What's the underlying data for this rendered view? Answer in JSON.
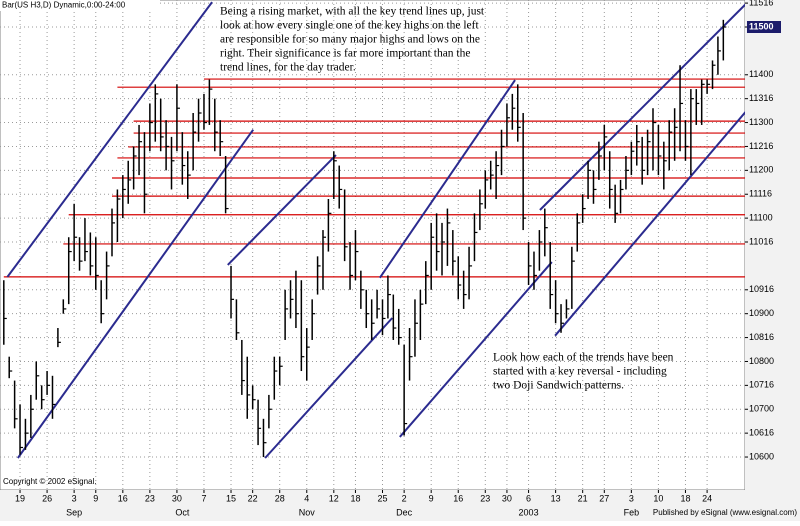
{
  "chart_data": {
    "type": "ohlc",
    "title": "Bar(US H3,D) Dynamic,0:00-24:00",
    "categories": [
      null,
      null,
      null,
      "19",
      null,
      null,
      null,
      null,
      "26",
      null,
      null,
      null,
      null,
      "3",
      null,
      null,
      null,
      "9",
      null,
      null,
      null,
      null,
      "16",
      null,
      null,
      null,
      null,
      "23",
      null,
      null,
      null,
      null,
      "30",
      null,
      null,
      null,
      null,
      "7",
      null,
      null,
      null,
      null,
      "15",
      null,
      null,
      null,
      "22",
      null,
      null,
      null,
      null,
      "28",
      null,
      null,
      null,
      null,
      "4",
      null,
      null,
      null,
      null,
      "12",
      null,
      null,
      null,
      "18",
      null,
      null,
      null,
      null,
      "25",
      null,
      null,
      null,
      "2",
      null,
      null,
      null,
      null,
      "9",
      null,
      null,
      null,
      null,
      "16",
      null,
      null,
      null,
      null,
      "23",
      null,
      null,
      null,
      "30",
      null,
      null,
      null,
      "6",
      null,
      null,
      null,
      null,
      "13",
      null,
      null,
      null,
      null,
      "21",
      null,
      null,
      null,
      "27",
      null,
      null,
      null,
      null,
      "3",
      null,
      null,
      null,
      null,
      "10",
      null,
      null,
      null,
      null,
      "18",
      null,
      null,
      null,
      "24",
      null,
      null,
      null
    ],
    "periods": [
      null,
      null,
      null,
      null,
      null,
      null,
      null,
      null,
      null,
      null,
      null,
      null,
      null,
      "Sep",
      null,
      null,
      null,
      null,
      null,
      null,
      null,
      null,
      null,
      null,
      null,
      null,
      null,
      null,
      null,
      null,
      null,
      null,
      null,
      "Oct",
      null,
      null,
      null,
      null,
      null,
      null,
      null,
      null,
      null,
      null,
      null,
      null,
      null,
      null,
      null,
      null,
      null,
      null,
      null,
      null,
      null,
      null,
      "Nov",
      null,
      null,
      null,
      null,
      null,
      null,
      null,
      null,
      null,
      null,
      null,
      null,
      null,
      null,
      null,
      null,
      null,
      "Dec",
      null,
      null,
      null,
      null,
      null,
      null,
      null,
      null,
      null,
      null,
      null,
      null,
      null,
      null,
      null,
      null,
      null,
      null,
      null,
      null,
      null,
      null,
      "2003",
      null,
      null,
      null,
      null,
      null,
      null,
      null,
      null,
      null,
      null,
      null,
      null,
      null,
      null,
      null,
      null,
      null,
      null,
      "Feb",
      null,
      null,
      null,
      null,
      null,
      null,
      null,
      null,
      null,
      null,
      null,
      null,
      null,
      null,
      null,
      null,
      null
    ],
    "high": [
      109.7,
      108.1,
      107.6,
      107.1,
      106.8,
      107.3,
      108.0,
      107.5,
      107.8,
      107.7,
      108.7,
      109.3,
      110.6,
      111.3,
      110.6,
      111.0,
      110.7,
      110.6,
      109.7,
      110.3,
      111.2,
      111.6,
      111.9,
      112.2,
      112.5,
      112.95,
      112.8,
      113.4,
      113.8,
      113.5,
      113.05,
      112.7,
      113.8,
      112.8,
      112.4,
      113.2,
      113.5,
      113.6,
      113.9,
      113.5,
      113.05,
      112.3,
      110.0,
      109.3,
      108.45,
      108.1,
      107.5,
      107.2,
      106.8,
      107.3,
      108.1,
      108.1,
      109.5,
      109.7,
      109.9,
      109.7,
      108.7,
      109.3,
      110.2,
      110.75,
      111.4,
      112.4,
      112.1,
      111.6,
      110.5,
      110.75,
      109.9,
      109.5,
      109.3,
      109.5,
      109.3,
      109.8,
      109.4,
      109.1,
      108.35,
      108.7,
      109.3,
      109.5,
      110.1,
      110.9,
      111.1,
      110.9,
      111.2,
      110.75,
      110.2,
      109.9,
      110.4,
      111.1,
      111.6,
      112.0,
      112.2,
      112.4,
      112.85,
      113.4,
      113.6,
      113.8,
      113.2,
      110.5,
      110.3,
      110.75,
      111.2,
      110.5,
      109.7,
      109.2,
      109.3,
      110.4,
      111.1,
      111.5,
      112.2,
      112.0,
      112.6,
      112.95,
      112.4,
      111.7,
      111.8,
      112.3,
      112.6,
      112.95,
      112.7,
      112.85,
      113.3,
      112.95,
      112.6,
      113.05,
      113.3,
      114.2,
      113.05,
      113.7,
      113.7,
      113.9,
      113.9,
      114.3,
      114.8,
      115.15
    ],
    "low": [
      108.35,
      107.65,
      106.6,
      106.05,
      106.15,
      106.4,
      107.2,
      107.0,
      107.3,
      106.8,
      108.3,
      109.0,
      109.2,
      110.1,
      109.9,
      110.1,
      109.8,
      109.5,
      108.8,
      109.3,
      110.2,
      110.5,
      111.0,
      111.3,
      111.6,
      111.9,
      111.1,
      112.4,
      112.6,
      112.4,
      112.0,
      111.6,
      112.4,
      111.7,
      111.4,
      112.0,
      112.6,
      112.85,
      112.95,
      112.4,
      112.3,
      111.1,
      108.9,
      108.45,
      107.3,
      106.8,
      107.0,
      106.25,
      106.0,
      106.6,
      107.2,
      107.5,
      108.45,
      108.9,
      108.7,
      107.8,
      107.6,
      108.45,
      109.4,
      109.5,
      110.3,
      111.4,
      111.2,
      110.1,
      109.5,
      109.7,
      109.1,
      108.7,
      108.45,
      108.9,
      108.55,
      108.9,
      108.45,
      108.35,
      106.45,
      107.6,
      108.1,
      108.45,
      109.2,
      109.5,
      109.9,
      109.8,
      110.0,
      109.8,
      109.3,
      109.1,
      109.3,
      110.1,
      110.75,
      111.2,
      111.6,
      111.4,
      111.9,
      112.5,
      112.85,
      112.6,
      110.75,
      109.6,
      109.5,
      109.9,
      110.2,
      109.1,
      108.8,
      108.6,
      108.9,
      109.1,
      110.3,
      110.9,
      111.4,
      111.3,
      111.8,
      112.0,
      111.2,
      110.9,
      111.1,
      111.6,
      111.9,
      112.1,
      111.7,
      111.9,
      112.0,
      111.9,
      111.6,
      112.0,
      112.2,
      112.4,
      112.2,
      111.9,
      112.95,
      112.95,
      113.6,
      113.7,
      114.0,
      114.3
    ],
    "close": [
      108.9,
      107.8,
      106.8,
      106.2,
      106.5,
      107.0,
      107.7,
      107.2,
      107.5,
      107.1,
      108.4,
      109.1,
      110.3,
      110.6,
      110.1,
      110.3,
      110.0,
      109.8,
      109.0,
      110.0,
      110.9,
      111.4,
      111.6,
      111.8,
      112.3,
      112.6,
      111.5,
      113.0,
      113.6,
      112.7,
      112.5,
      112.2,
      113.3,
      112.1,
      111.9,
      112.8,
      113.2,
      113.0,
      113.7,
      112.8,
      112.6,
      111.2,
      109.3,
      108.6,
      107.6,
      107.3,
      107.2,
      106.6,
      106.3,
      107.0,
      107.8,
      107.9,
      109.1,
      109.3,
      109.0,
      108.1,
      108.3,
      109.0,
      110.0,
      110.6,
      111.1,
      112.2,
      111.6,
      110.4,
      109.8,
      110.3,
      109.5,
      109.0,
      108.8,
      109.1,
      108.9,
      109.4,
      108.7,
      108.5,
      106.7,
      108.1,
      108.8,
      109.2,
      109.8,
      110.6,
      110.3,
      110.5,
      110.9,
      110.1,
      109.6,
      109.4,
      110.0,
      110.7,
      111.3,
      111.8,
      111.9,
      112.1,
      112.5,
      113.1,
      113.3,
      112.9,
      111.0,
      110.0,
      109.8,
      110.5,
      110.8,
      109.4,
      109.0,
      108.8,
      109.1,
      110.1,
      110.9,
      111.2,
      112.0,
      111.6,
      112.3,
      112.7,
      111.6,
      111.1,
      111.6,
      112.0,
      112.4,
      112.6,
      112.0,
      112.6,
      113.0,
      112.3,
      112.2,
      112.8,
      112.9,
      113.4,
      112.5,
      113.5,
      113.4,
      113.8,
      113.8,
      114.2,
      114.5,
      115.0
    ],
    "bar_color": "#000000",
    "ylim": [
      105.31,
      115.565
    ],
    "yticks": [
      {
        "value": 115.5,
        "label": "11516"
      },
      {
        "value": 115,
        "label": "11500",
        "highlight": true
      },
      {
        "value": 114,
        "label": "11400"
      },
      {
        "value": 113.5,
        "label": "11316"
      },
      {
        "value": 113,
        "label": "11300"
      },
      {
        "value": 112.5,
        "label": "11216"
      },
      {
        "value": 112,
        "label": "11200"
      },
      {
        "value": 111.5,
        "label": "11116"
      },
      {
        "value": 111,
        "label": "11100"
      },
      {
        "value": 110.5,
        "label": "11016"
      },
      {
        "value": 109.5,
        "label": "10916"
      },
      {
        "value": 109,
        "label": "10900"
      },
      {
        "value": 108.5,
        "label": "10816"
      },
      {
        "value": 108,
        "label": "10800"
      },
      {
        "value": 107.5,
        "label": "10716"
      },
      {
        "value": 107,
        "label": "10700"
      },
      {
        "value": 106.5,
        "label": "10616"
      },
      {
        "value": 106,
        "label": "10600"
      }
    ],
    "grid": true,
    "level_color": "#d40000",
    "levels": [
      {
        "value": 113.91,
        "from": 37
      },
      {
        "value": 113.74,
        "from": 21
      },
      {
        "value": 113.03,
        "from": 24
      },
      {
        "value": 112.78,
        "from": 24
      },
      {
        "value": 112.49,
        "from": 23
      },
      {
        "value": 112.26,
        "from": 21
      },
      {
        "value": 111.84,
        "from": 20
      },
      {
        "value": 111.46,
        "from": 20
      },
      {
        "value": 111.07,
        "from": 12
      },
      {
        "value": 110.46,
        "from": 11
      },
      {
        "value": 109.77,
        "from": 0
      }
    ],
    "trend_color": "#2b2b8f",
    "trendlines": [
      {
        "x": [
          0.67,
          38.5
        ],
        "y": [
          109.77,
          115.52
        ]
      },
      {
        "x": [
          2.6,
          46.1
        ],
        "y": [
          105.98,
          112.85
        ]
      },
      {
        "x": [
          41.4,
          61.4
        ],
        "y": [
          110.02,
          112.32
        ]
      },
      {
        "x": [
          48.3,
          71.8
        ],
        "y": [
          105.98,
          108.91
        ]
      },
      {
        "x": [
          69.5,
          94.5
        ],
        "y": [
          109.75,
          113.89
        ]
      },
      {
        "x": [
          73.2,
          101.3
        ],
        "y": [
          106.42,
          110.08
        ]
      },
      {
        "x": [
          99.1,
          137.9
        ],
        "y": [
          111.17,
          115.565
        ]
      },
      {
        "x": [
          101.9,
          139.8
        ],
        "y": [
          108.54,
          113.58
        ]
      }
    ],
    "annotations": [
      [
        "Being a rising market, with all the key trend lines up, just",
        "look at how every single one of the key highs on the left",
        "are responsible for so many major highs and lows on the",
        "right.  Their significance is far more important than the",
        "trend lines, for the day trader."
      ],
      [
        "Look how each of the trends have been",
        "started with a key reversal - including",
        "two Doji Sandwich patterns."
      ]
    ],
    "copyright": "Copyright © 2002 eSignal.",
    "publisher": "Published by eSignal (www.esignal.com)"
  }
}
